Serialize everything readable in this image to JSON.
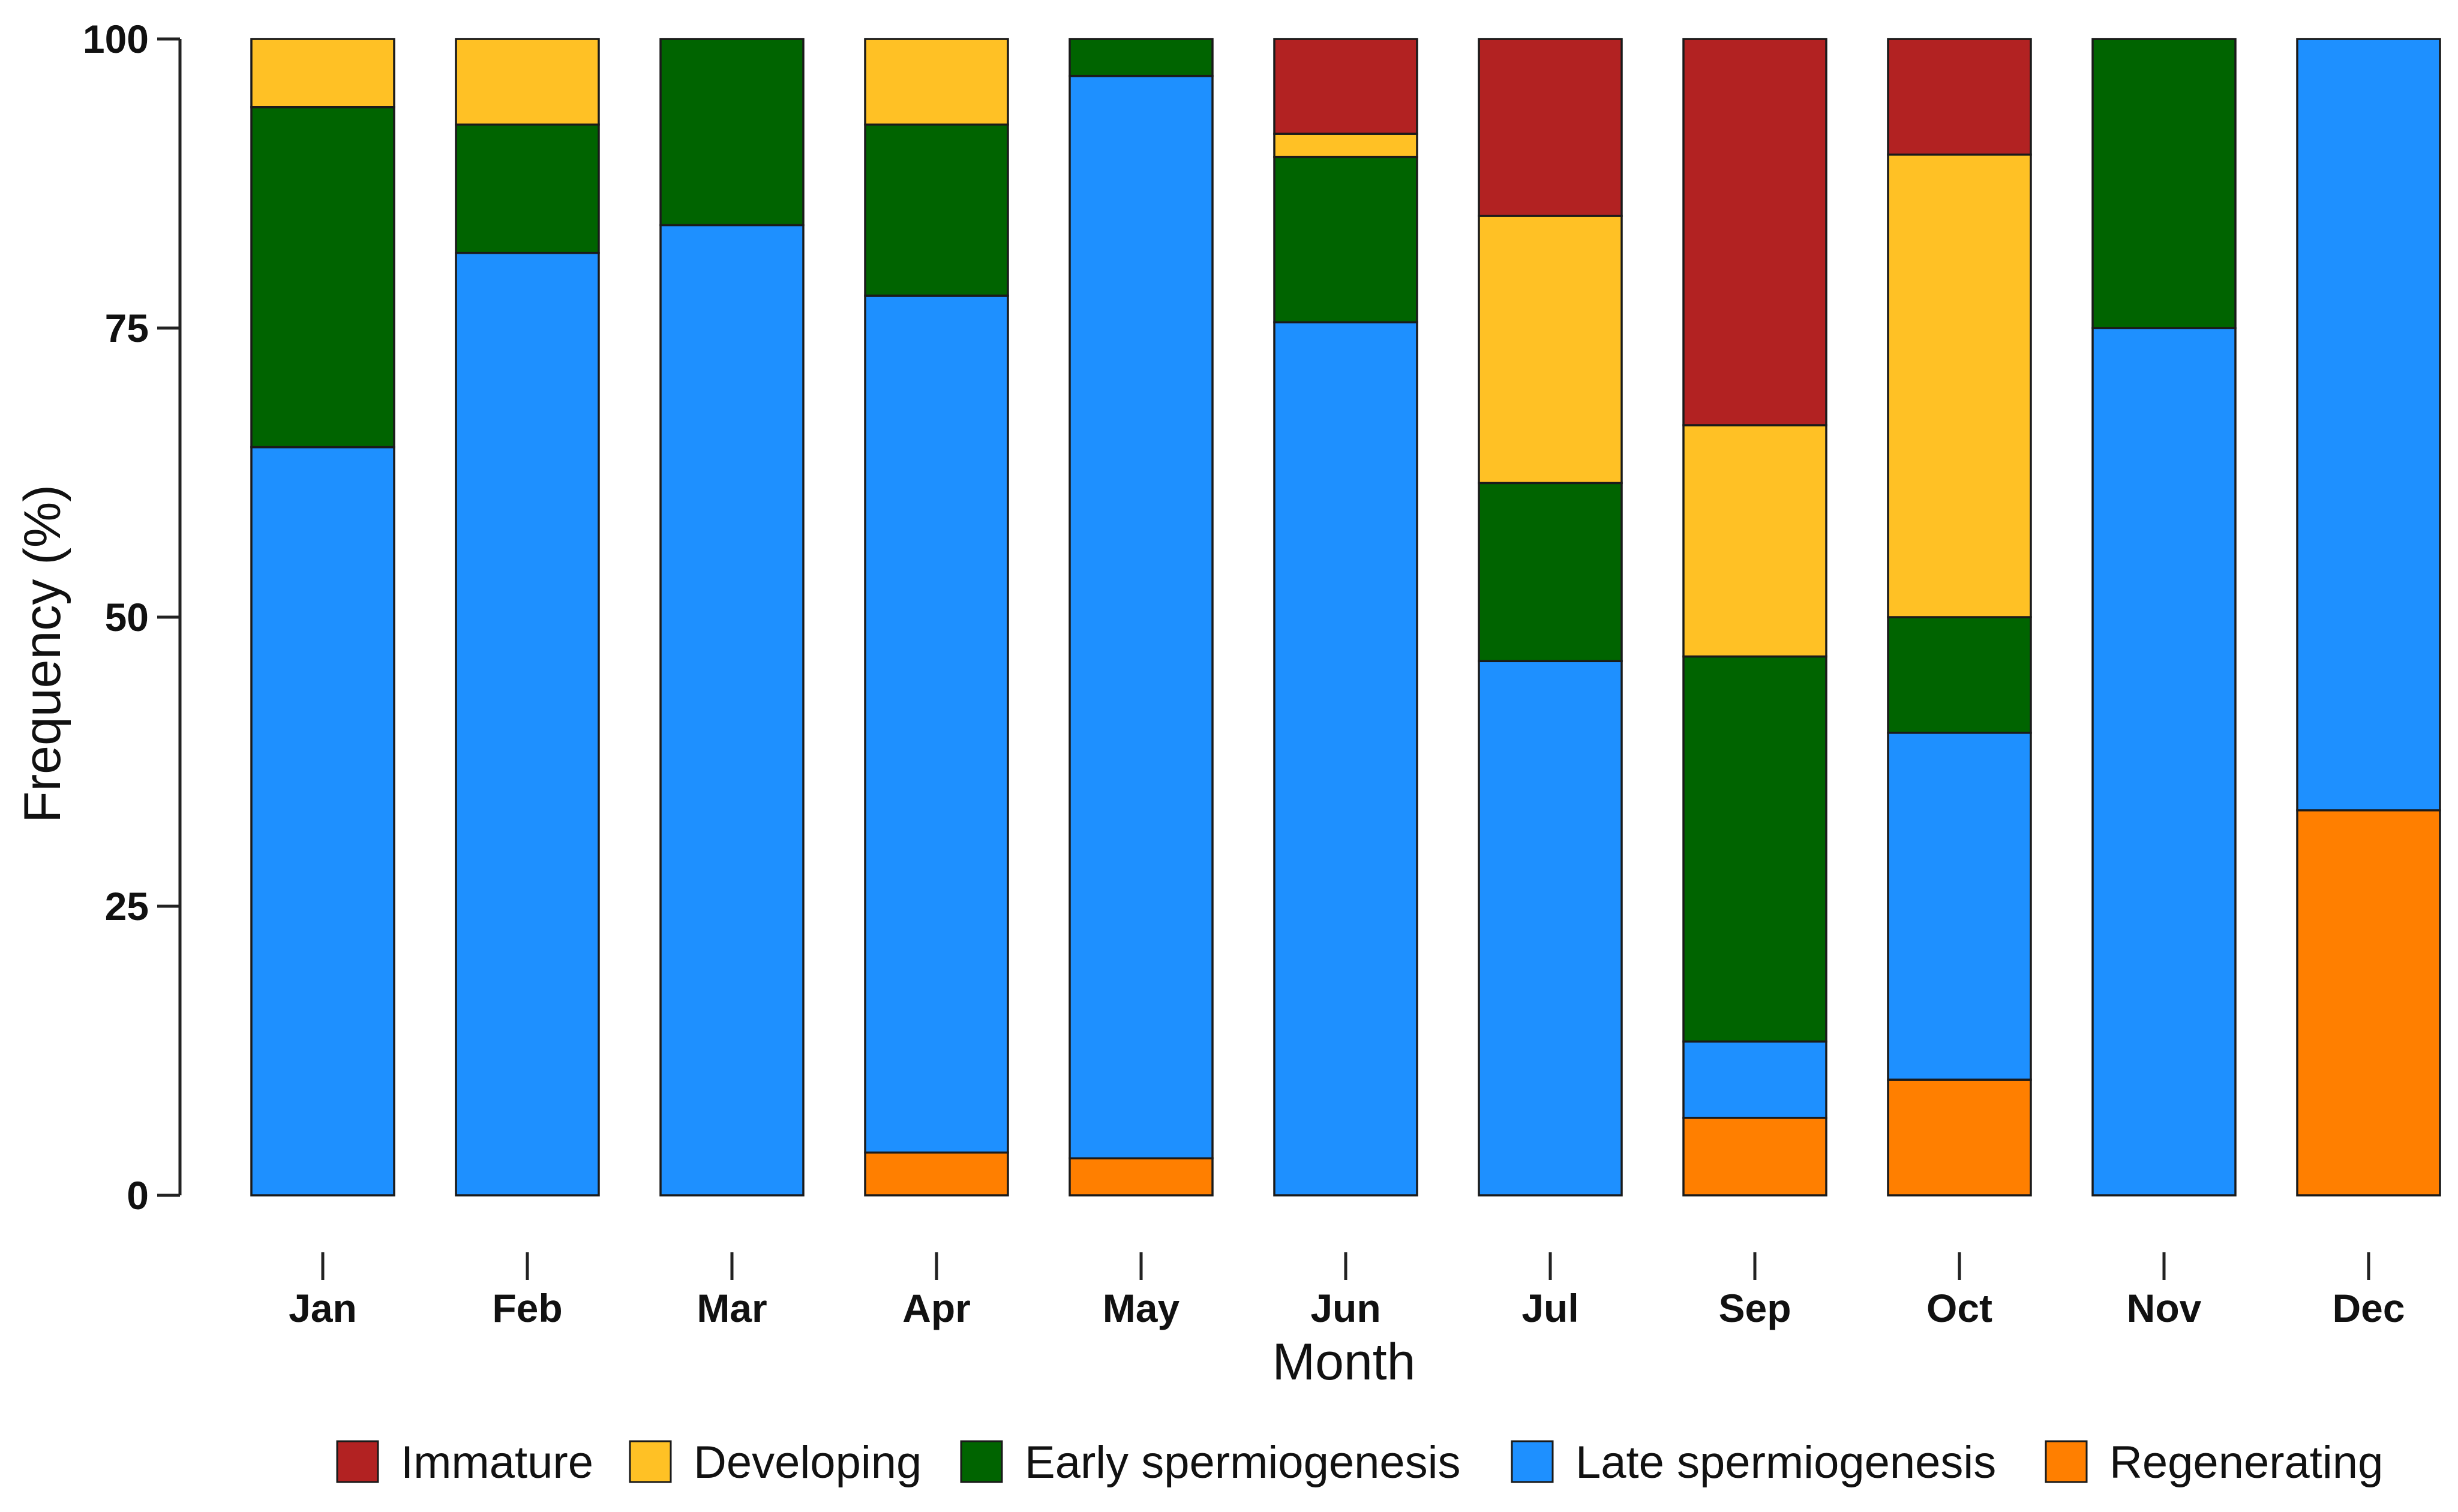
{
  "chart_data": {
    "type": "bar",
    "stacked": true,
    "xlabel": "Month",
    "ylabel": "Frequency (%)",
    "ylim": [
      0,
      100
    ],
    "yticks": [
      0,
      25,
      50,
      75,
      100
    ],
    "grid": false,
    "legend_position": "bottom",
    "categories": [
      "Jan",
      "Feb",
      "Mar",
      "Apr",
      "May",
      "Jun",
      "Jul",
      "Sep",
      "Oct",
      "Nov",
      "Dec"
    ],
    "series": [
      {
        "name": "Regenerating",
        "color": "#FF7F00",
        "values": [
          0,
          0,
          0,
          3.7,
          3.2,
          0,
          0,
          6.7,
          10,
          0,
          33.3
        ]
      },
      {
        "name": "Late spermiogenesis",
        "color": "#1E90FF",
        "values": [
          64.7,
          81.5,
          83.9,
          74.1,
          93.6,
          75.5,
          46.2,
          6.6,
          30,
          75,
          66.7
        ]
      },
      {
        "name": "Early spermiogenesis",
        "color": "#006400",
        "values": [
          29.4,
          11.1,
          16.1,
          14.8,
          3.2,
          14.3,
          15.4,
          33.3,
          10,
          25,
          0
        ]
      },
      {
        "name": "Developing",
        "color": "#FFC125",
        "values": [
          5.9,
          7.4,
          0,
          7.4,
          0,
          2.0,
          23.1,
          20.0,
          40,
          0,
          0
        ]
      },
      {
        "name": "Immature",
        "color": "#B22222",
        "values": [
          0,
          0,
          0,
          0,
          0,
          8.2,
          15.3,
          33.4,
          10,
          0,
          0
        ]
      }
    ],
    "legend_order": [
      "Immature",
      "Developing",
      "Early spermiogenesis",
      "Late spermiogenesis",
      "Regenerating"
    ]
  }
}
